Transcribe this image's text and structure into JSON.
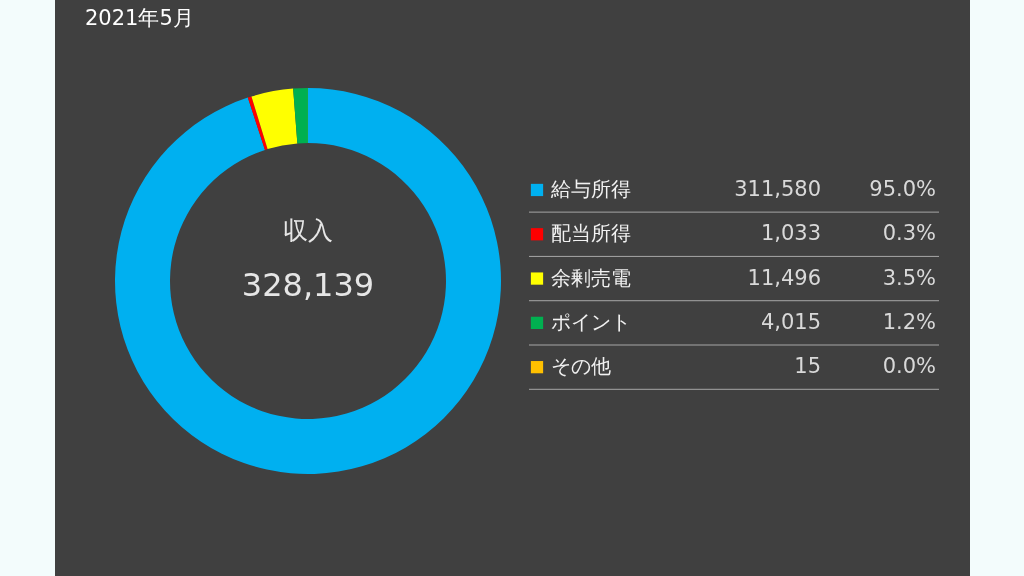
{
  "chart_data": {
    "type": "donut",
    "title": "2021年5月",
    "categories": [
      "給与所得",
      "配当所得",
      "余剰売電",
      "ポイント",
      "その他"
    ],
    "values": [
      311580,
      1033,
      11496,
      4015,
      15
    ],
    "colors": [
      "#00b0f0",
      "#ff0000",
      "#ffff00",
      "#00b050",
      "#ffc000"
    ],
    "value_labels": [
      "311,580",
      "1,033",
      "11,496",
      "4,015",
      "15"
    ],
    "annotations": [
      "収入",
      "328,139",
      "95.0%",
      "0.3%",
      "3.5%",
      "1.2%",
      "0.0%"
    ],
    "legend": "right"
  }
}
